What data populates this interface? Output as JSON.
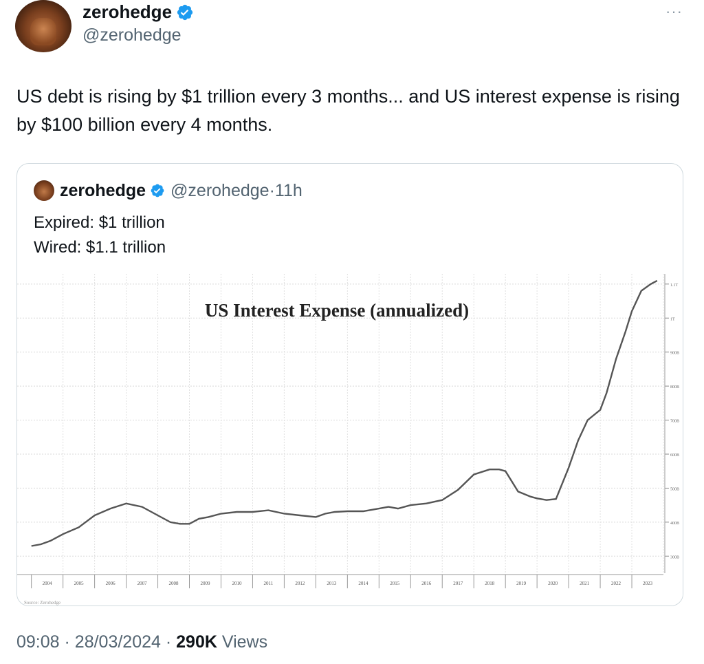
{
  "author": {
    "name": "zerohedge",
    "handle": "@zerohedge",
    "verified": true,
    "badge_color": "#1d9bf0"
  },
  "menu": {
    "more_label": "···"
  },
  "tweet": {
    "text": "US debt is rising by $1 trillion every 3 months... and US interest expense is rising by $100 billion every 4 months."
  },
  "quoted": {
    "name": "zerohedge",
    "handle": "@zerohedge",
    "separator": "·",
    "time": "11h",
    "lines": [
      "Expired: $1 trillion",
      "Wired: $1.1 trillion"
    ]
  },
  "chart_data": {
    "type": "line",
    "title": "US Interest Expense (annualized)",
    "xlabel": "",
    "ylabel": "",
    "source_note": "Source: Zerohedge",
    "x_ticks": [
      "2004",
      "2005",
      "2006",
      "2007",
      "2008",
      "2009",
      "2010",
      "2011",
      "2012",
      "2013",
      "2014",
      "2015",
      "2016",
      "2017",
      "2018",
      "2019",
      "2020",
      "2021",
      "2022",
      "2023"
    ],
    "y_ticks": [
      "300B",
      "400B",
      "500B",
      "600B",
      "700B",
      "800B",
      "900B",
      "1T",
      "1.1T"
    ],
    "ylim": [
      250,
      1130
    ],
    "grid": true,
    "series": [
      {
        "x": [
          2004.0,
          2004.3,
          2004.6,
          2005.0,
          2005.5,
          2006.0,
          2006.5,
          2007.0,
          2007.5,
          2008.0,
          2008.4,
          2008.7,
          2009.0,
          2009.3,
          2009.6,
          2010.0,
          2010.5,
          2011.0,
          2011.5,
          2012.0,
          2012.5,
          2013.0,
          2013.3,
          2013.6,
          2014.0,
          2014.5,
          2015.0,
          2015.3,
          2015.6,
          2016.0,
          2016.5,
          2017.0,
          2017.5,
          2018.0,
          2018.5,
          2018.8,
          2019.0,
          2019.4,
          2019.8,
          2020.0,
          2020.3,
          2020.6,
          2021.0,
          2021.3,
          2021.6,
          2022.0,
          2022.2,
          2022.5,
          2022.8,
          2023.0,
          2023.3,
          2023.6,
          2023.8
        ],
        "y": [
          330,
          335,
          345,
          365,
          385,
          420,
          440,
          455,
          445,
          420,
          400,
          395,
          395,
          410,
          415,
          425,
          430,
          430,
          435,
          425,
          420,
          415,
          425,
          430,
          432,
          432,
          440,
          445,
          440,
          450,
          455,
          465,
          495,
          540,
          555,
          555,
          550,
          490,
          475,
          470,
          465,
          468,
          560,
          640,
          700,
          730,
          780,
          880,
          960,
          1020,
          1080,
          1100,
          1110
        ]
      }
    ]
  },
  "footer": {
    "time": "09:08",
    "date": "28/03/2024",
    "separator": "·",
    "views_count": "290K",
    "views_label": "Views"
  }
}
